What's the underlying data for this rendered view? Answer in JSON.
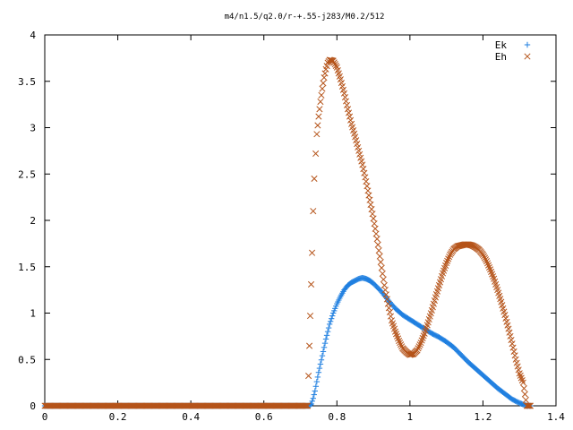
{
  "chart_data": {
    "type": "scatter",
    "title": "m4/n1.5/q2.0/r-+.55-j283/M0.2/512",
    "xlabel": "",
    "ylabel": "",
    "xlim": [
      0,
      1.4
    ],
    "ylim": [
      0,
      4
    ],
    "x_ticks": [
      "0",
      "0.2",
      "0.4",
      "0.6",
      "0.8",
      "1",
      "1.2",
      "1.4"
    ],
    "y_ticks": [
      "0",
      "0.5",
      "1",
      "1.5",
      "2",
      "2.5",
      "3",
      "3.5",
      "4"
    ],
    "grid": false,
    "legend_position": "top-right",
    "series": [
      {
        "name": "Ek",
        "marker": "plus",
        "color": "#1f7fe0",
        "points": [
          [
            0.0,
            0
          ],
          [
            0.1,
            0
          ],
          [
            0.2,
            0
          ],
          [
            0.3,
            0
          ],
          [
            0.4,
            0
          ],
          [
            0.5,
            0
          ],
          [
            0.6,
            0
          ],
          [
            0.7,
            0
          ],
          [
            0.725,
            0
          ],
          [
            0.73,
            0.02
          ],
          [
            0.735,
            0.08
          ],
          [
            0.74,
            0.16
          ],
          [
            0.745,
            0.26
          ],
          [
            0.75,
            0.36
          ],
          [
            0.76,
            0.54
          ],
          [
            0.77,
            0.72
          ],
          [
            0.78,
            0.88
          ],
          [
            0.79,
            1.0
          ],
          [
            0.8,
            1.1
          ],
          [
            0.81,
            1.18
          ],
          [
            0.82,
            1.25
          ],
          [
            0.83,
            1.3
          ],
          [
            0.84,
            1.33
          ],
          [
            0.85,
            1.35
          ],
          [
            0.86,
            1.37
          ],
          [
            0.87,
            1.38
          ],
          [
            0.88,
            1.37
          ],
          [
            0.89,
            1.35
          ],
          [
            0.9,
            1.32
          ],
          [
            0.92,
            1.24
          ],
          [
            0.94,
            1.14
          ],
          [
            0.96,
            1.05
          ],
          [
            0.98,
            0.98
          ],
          [
            1.0,
            0.93
          ],
          [
            1.02,
            0.88
          ],
          [
            1.04,
            0.83
          ],
          [
            1.06,
            0.78
          ],
          [
            1.08,
            0.74
          ],
          [
            1.1,
            0.69
          ],
          [
            1.12,
            0.63
          ],
          [
            1.14,
            0.55
          ],
          [
            1.16,
            0.47
          ],
          [
            1.18,
            0.4
          ],
          [
            1.2,
            0.33
          ],
          [
            1.22,
            0.26
          ],
          [
            1.24,
            0.19
          ],
          [
            1.26,
            0.13
          ],
          [
            1.28,
            0.07
          ],
          [
            1.3,
            0.03
          ],
          [
            1.32,
            0.0
          ],
          [
            1.33,
            0.0
          ]
        ]
      },
      {
        "name": "Eh",
        "marker": "cross",
        "color": "#b5541a",
        "points": [
          [
            0.0,
            0
          ],
          [
            0.1,
            0
          ],
          [
            0.2,
            0
          ],
          [
            0.3,
            0
          ],
          [
            0.4,
            0
          ],
          [
            0.5,
            0
          ],
          [
            0.6,
            0
          ],
          [
            0.7,
            0
          ],
          [
            0.72,
            0
          ],
          [
            0.727,
            0.97
          ],
          [
            0.732,
            1.65
          ],
          [
            0.735,
            2.1
          ],
          [
            0.738,
            2.45
          ],
          [
            0.742,
            2.72
          ],
          [
            0.745,
            2.93
          ],
          [
            0.75,
            3.12
          ],
          [
            0.755,
            3.28
          ],
          [
            0.76,
            3.42
          ],
          [
            0.765,
            3.54
          ],
          [
            0.77,
            3.63
          ],
          [
            0.775,
            3.7
          ],
          [
            0.78,
            3.73
          ],
          [
            0.79,
            3.72
          ],
          [
            0.8,
            3.65
          ],
          [
            0.81,
            3.52
          ],
          [
            0.82,
            3.37
          ],
          [
            0.83,
            3.2
          ],
          [
            0.84,
            3.04
          ],
          [
            0.85,
            2.9
          ],
          [
            0.86,
            2.75
          ],
          [
            0.87,
            2.6
          ],
          [
            0.88,
            2.42
          ],
          [
            0.89,
            2.22
          ],
          [
            0.9,
            2.02
          ],
          [
            0.91,
            1.8
          ],
          [
            0.92,
            1.55
          ],
          [
            0.93,
            1.3
          ],
          [
            0.94,
            1.1
          ],
          [
            0.95,
            0.92
          ],
          [
            0.96,
            0.8
          ],
          [
            0.97,
            0.7
          ],
          [
            0.98,
            0.62
          ],
          [
            0.99,
            0.58
          ],
          [
            1.0,
            0.55
          ],
          [
            1.01,
            0.56
          ],
          [
            1.02,
            0.6
          ],
          [
            1.03,
            0.68
          ],
          [
            1.04,
            0.78
          ],
          [
            1.05,
            0.9
          ],
          [
            1.06,
            1.03
          ],
          [
            1.07,
            1.17
          ],
          [
            1.08,
            1.3
          ],
          [
            1.09,
            1.43
          ],
          [
            1.1,
            1.54
          ],
          [
            1.11,
            1.63
          ],
          [
            1.12,
            1.69
          ],
          [
            1.13,
            1.72
          ],
          [
            1.14,
            1.73
          ],
          [
            1.15,
            1.74
          ],
          [
            1.16,
            1.74
          ],
          [
            1.17,
            1.73
          ],
          [
            1.18,
            1.71
          ],
          [
            1.19,
            1.68
          ],
          [
            1.2,
            1.63
          ],
          [
            1.21,
            1.56
          ],
          [
            1.22,
            1.47
          ],
          [
            1.23,
            1.37
          ],
          [
            1.24,
            1.25
          ],
          [
            1.25,
            1.12
          ],
          [
            1.26,
            0.98
          ],
          [
            1.27,
            0.83
          ],
          [
            1.28,
            0.67
          ],
          [
            1.29,
            0.5
          ],
          [
            1.3,
            0.35
          ],
          [
            1.31,
            0.25
          ],
          [
            1.32,
            0.0
          ],
          [
            1.33,
            0.0
          ]
        ]
      }
    ]
  }
}
